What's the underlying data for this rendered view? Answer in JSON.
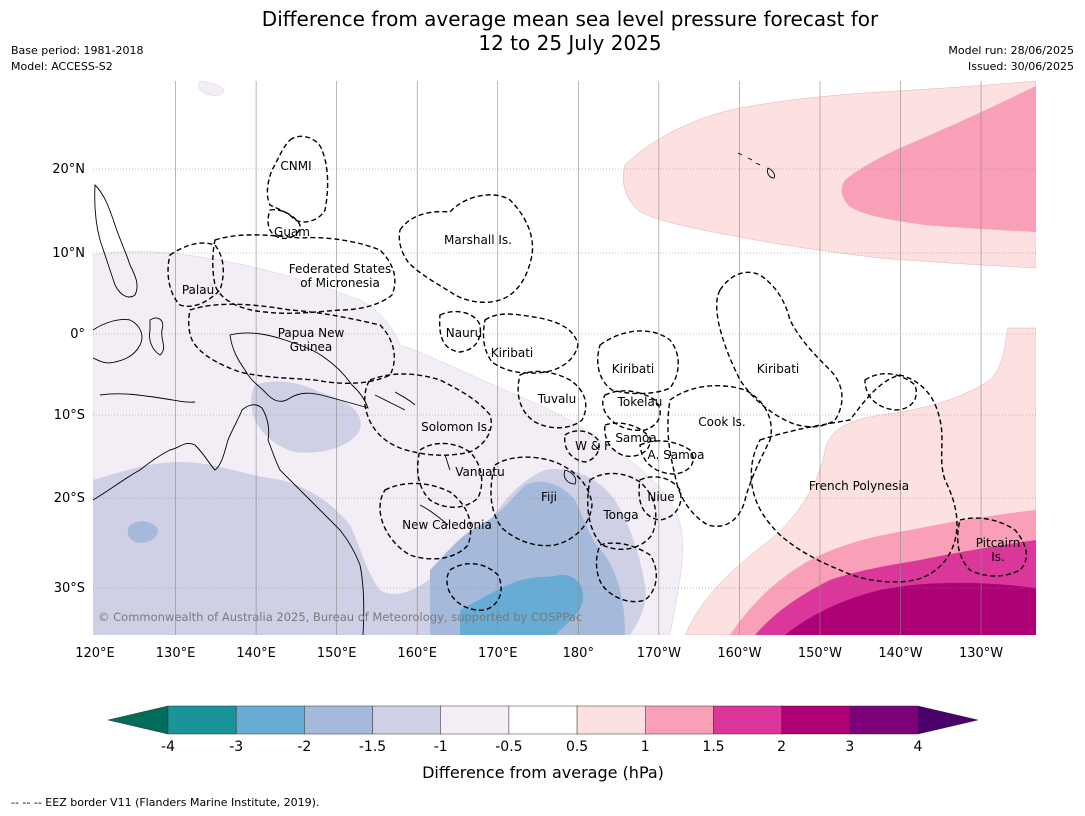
{
  "title_line1": "Difference from average mean sea level pressure forecast for",
  "title_line2": "12 to 25 July 2025",
  "meta_left": [
    "Base period: 1981-2018",
    "Model: ACCESS-S2"
  ],
  "meta_right": [
    "Model run: 28/06/2025",
    "Issued: 30/06/2025"
  ],
  "copyright": "© Commonwealth of Australia 2025, Bureau of Meteorology, supported by COSPPac",
  "footer": "--  --  -- EEZ border V11 (Flanders Marine Institute, 2019).",
  "lat_labels": [
    "20°N",
    "10°N",
    "0°",
    "10°S",
    "20°S",
    "30°S"
  ],
  "lon_labels": [
    "120°E",
    "130°E",
    "140°E",
    "150°E",
    "160°E",
    "170°E",
    "180°",
    "170°W",
    "160°W",
    "150°W",
    "140°W",
    "130°W"
  ],
  "places": [
    {
      "id": "cnmi",
      "lines": [
        "CNMI"
      ]
    },
    {
      "id": "guam",
      "lines": [
        "Guam"
      ]
    },
    {
      "id": "marshall",
      "lines": [
        "Marshall Is."
      ]
    },
    {
      "id": "fsm",
      "lines": [
        "Federated States",
        "of Micronesia"
      ]
    },
    {
      "id": "palau",
      "lines": [
        "Palau"
      ]
    },
    {
      "id": "png",
      "lines": [
        "Papua New",
        "Guinea"
      ]
    },
    {
      "id": "nauru",
      "lines": [
        "Nauru"
      ]
    },
    {
      "id": "kiribati-w",
      "lines": [
        "Kiribati"
      ]
    },
    {
      "id": "kiribati-c",
      "lines": [
        "Kiribati"
      ]
    },
    {
      "id": "kiribati-e",
      "lines": [
        "Kiribati"
      ]
    },
    {
      "id": "tuvalu",
      "lines": [
        "Tuvalu"
      ]
    },
    {
      "id": "tokelau",
      "lines": [
        "Tokelau"
      ]
    },
    {
      "id": "cook",
      "lines": [
        "Cook Is."
      ]
    },
    {
      "id": "solomon",
      "lines": [
        "Solomon Is."
      ]
    },
    {
      "id": "samoa",
      "lines": [
        "Samoa"
      ]
    },
    {
      "id": "wf",
      "lines": [
        "W & F"
      ]
    },
    {
      "id": "asamoa",
      "lines": [
        "A. Samoa"
      ]
    },
    {
      "id": "vanuatu",
      "lines": [
        "Vanuatu"
      ]
    },
    {
      "id": "fiji",
      "lines": [
        "Fiji"
      ]
    },
    {
      "id": "niue",
      "lines": [
        "Niue"
      ]
    },
    {
      "id": "tonga",
      "lines": [
        "Tonga"
      ]
    },
    {
      "id": "newcal",
      "lines": [
        "New Caledonia"
      ]
    },
    {
      "id": "frpoly",
      "lines": [
        "French Polynesia"
      ]
    },
    {
      "id": "pitcairn",
      "lines": [
        "Pitcairn",
        "Is."
      ]
    }
  ],
  "colorbar": {
    "title": "Difference from average (hPa)",
    "ticks": [
      "-4",
      "-3",
      "-2",
      "-1.5",
      "-1",
      "-0.5",
      "0.5",
      "1",
      "1.5",
      "2",
      "3",
      "4"
    ],
    "colors": [
      "#1a9399",
      "#67acd4",
      "#a5b9da",
      "#cfd0e6",
      "#f3eef6",
      "#ffffff",
      "#fde0e0",
      "#f99fb8",
      "#db369a",
      "#ae0176",
      "#7a0177"
    ],
    "under_color": "#016c59",
    "over_color": "#49006a"
  },
  "fill_colors": {
    "land_bg": "#ffffff",
    "grid": "#8a8a8a",
    "coast": "#000000",
    "eez": "#000000"
  }
}
